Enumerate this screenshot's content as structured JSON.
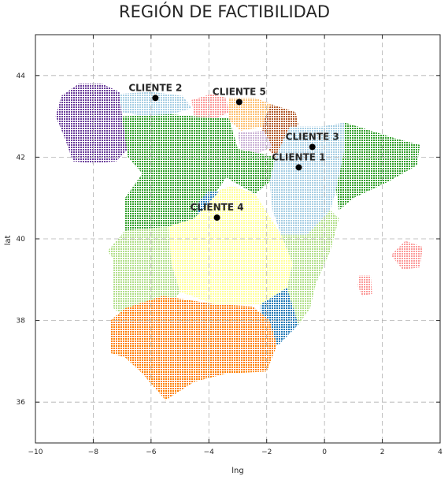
{
  "chart_data": {
    "type": "scatter",
    "title": "REGIÓN DE FACTIBILIDAD",
    "xlabel": "lng",
    "ylabel": "lat",
    "xlim": [
      -10,
      4
    ],
    "ylim": [
      35,
      45
    ],
    "x_ticks": [
      -10,
      -8,
      -6,
      -4,
      -2,
      0,
      2,
      4
    ],
    "y_ticks": [
      36,
      38,
      40,
      42,
      44
    ],
    "grid": true,
    "grid_style": "dashed",
    "colors": {
      "purple": "#6a3d9a",
      "light_blue": "#a6cee3",
      "pink": "#fb9a99",
      "peach": "#fdbf6f",
      "brown": "#b15928",
      "lavender": "#cab2d6",
      "green": "#33a02c",
      "dark_blue": "#1f78b4",
      "yellow": "#ffff99",
      "light_green": "#b2df8a",
      "orange": "#ff7f00",
      "point": "#000000"
    },
    "clients": [
      {
        "label": "CLIENTE 2",
        "lng": -5.85,
        "lat": 43.45
      },
      {
        "label": "CLIENTE 5",
        "lng": -2.95,
        "lat": 43.35
      },
      {
        "label": "CLIENTE 3",
        "lng": -0.42,
        "lat": 42.25
      },
      {
        "label": "CLIENTE 1",
        "lng": -0.89,
        "lat": 41.75
      },
      {
        "label": "CLIENTE 4",
        "lng": -3.72,
        "lat": 40.52
      }
    ],
    "regions": [
      {
        "color": "purple",
        "polygon": [
          [
            -9.3,
            43.0
          ],
          [
            -9.1,
            43.5
          ],
          [
            -8.5,
            43.8
          ],
          [
            -7.7,
            43.8
          ],
          [
            -7.1,
            43.6
          ],
          [
            -7.0,
            43.0
          ],
          [
            -6.8,
            42.2
          ],
          [
            -7.2,
            41.9
          ],
          [
            -8.0,
            41.85
          ],
          [
            -8.7,
            41.9
          ],
          [
            -9.0,
            42.5
          ]
        ]
      },
      {
        "color": "light_blue",
        "polygon": [
          [
            -7.1,
            43.55
          ],
          [
            -6.0,
            43.6
          ],
          [
            -4.9,
            43.5
          ],
          [
            -4.6,
            43.2
          ],
          [
            -5.3,
            43.05
          ],
          [
            -6.2,
            43.0
          ],
          [
            -7.0,
            43.1
          ]
        ]
      },
      {
        "color": "pink",
        "polygon": [
          [
            -4.6,
            43.4
          ],
          [
            -3.9,
            43.55
          ],
          [
            -3.4,
            43.45
          ],
          [
            -3.3,
            43.1
          ],
          [
            -3.9,
            42.9
          ],
          [
            -4.5,
            43.0
          ]
        ]
      },
      {
        "color": "peach",
        "polygon": [
          [
            -3.3,
            43.45
          ],
          [
            -2.4,
            43.45
          ],
          [
            -1.85,
            43.3
          ],
          [
            -2.1,
            42.75
          ],
          [
            -2.9,
            42.65
          ],
          [
            -3.3,
            42.9
          ]
        ]
      },
      {
        "color": "brown",
        "polygon": [
          [
            -1.85,
            43.3
          ],
          [
            -1.0,
            43.1
          ],
          [
            -0.9,
            42.8
          ],
          [
            -1.3,
            42.3
          ],
          [
            -1.7,
            42.0
          ],
          [
            -2.2,
            42.4
          ],
          [
            -2.1,
            42.9
          ]
        ]
      },
      {
        "color": "lavender",
        "polygon": [
          [
            -3.0,
            42.6
          ],
          [
            -2.1,
            42.65
          ],
          [
            -1.8,
            42.25
          ],
          [
            -2.3,
            42.1
          ],
          [
            -2.9,
            42.2
          ]
        ]
      },
      {
        "color": "light_blue",
        "polygon": [
          [
            -1.7,
            42.0
          ],
          [
            -1.2,
            42.75
          ],
          [
            -0.1,
            42.75
          ],
          [
            0.7,
            42.85
          ],
          [
            0.7,
            42.2
          ],
          [
            0.4,
            41.2
          ],
          [
            0.2,
            40.7
          ],
          [
            -0.6,
            40.1
          ],
          [
            -1.5,
            40.1
          ],
          [
            -1.8,
            40.7
          ],
          [
            -1.9,
            41.4
          ]
        ]
      },
      {
        "color": "green",
        "polygon": [
          [
            -7.0,
            43.0
          ],
          [
            -5.3,
            43.05
          ],
          [
            -4.5,
            43.0
          ],
          [
            -3.3,
            42.95
          ],
          [
            -3.0,
            42.2
          ],
          [
            -2.3,
            42.1
          ],
          [
            -1.7,
            42.0
          ],
          [
            -1.9,
            41.4
          ],
          [
            -2.4,
            41.1
          ],
          [
            -3.4,
            41.5
          ],
          [
            -3.9,
            41.0
          ],
          [
            -4.5,
            40.5
          ],
          [
            -5.4,
            40.3
          ],
          [
            -6.9,
            40.2
          ],
          [
            -6.9,
            41.0
          ],
          [
            -6.3,
            41.6
          ],
          [
            -6.8,
            42.0
          ]
        ]
      },
      {
        "color": "green",
        "polygon": [
          [
            0.7,
            42.85
          ],
          [
            1.6,
            42.65
          ],
          [
            2.5,
            42.45
          ],
          [
            3.3,
            42.3
          ],
          [
            3.2,
            41.8
          ],
          [
            2.2,
            41.4
          ],
          [
            1.0,
            41.0
          ],
          [
            0.5,
            40.7
          ],
          [
            0.4,
            41.2
          ],
          [
            0.7,
            42.2
          ]
        ]
      },
      {
        "color": "dark_blue",
        "polygon": [
          [
            -4.4,
            40.85
          ],
          [
            -4.05,
            41.15
          ],
          [
            -3.55,
            41.15
          ],
          [
            -3.15,
            40.85
          ],
          [
            -3.3,
            40.25
          ],
          [
            -3.85,
            40.05
          ],
          [
            -4.4,
            40.3
          ]
        ]
      },
      {
        "color": "yellow",
        "polygon": [
          [
            -5.4,
            40.3
          ],
          [
            -4.5,
            40.5
          ],
          [
            -4.1,
            40.8
          ],
          [
            -3.6,
            41.2
          ],
          [
            -3.2,
            41.3
          ],
          [
            -2.4,
            41.1
          ],
          [
            -1.5,
            40.1
          ],
          [
            -1.1,
            39.4
          ],
          [
            -1.3,
            38.8
          ],
          [
            -2.2,
            38.4
          ],
          [
            -3.8,
            38.4
          ],
          [
            -5.0,
            38.7
          ],
          [
            -5.3,
            39.4
          ]
        ]
      },
      {
        "color": "light_green",
        "polygon": [
          [
            -6.9,
            40.2
          ],
          [
            -5.4,
            40.3
          ],
          [
            -5.3,
            39.4
          ],
          [
            -5.0,
            38.7
          ],
          [
            -5.6,
            38.1
          ],
          [
            -6.5,
            37.9
          ],
          [
            -7.3,
            38.3
          ],
          [
            -7.3,
            39.5
          ],
          [
            -7.5,
            39.7
          ]
        ]
      },
      {
        "color": "light_green",
        "polygon": [
          [
            -0.6,
            40.1
          ],
          [
            0.2,
            40.7
          ],
          [
            0.5,
            40.5
          ],
          [
            0.2,
            39.7
          ],
          [
            -0.3,
            38.9
          ],
          [
            -0.5,
            38.3
          ],
          [
            -0.9,
            37.9
          ],
          [
            -1.3,
            38.8
          ],
          [
            -1.1,
            39.4
          ],
          [
            -1.5,
            40.1
          ]
        ]
      },
      {
        "color": "dark_blue",
        "polygon": [
          [
            -2.2,
            38.4
          ],
          [
            -1.3,
            38.8
          ],
          [
            -0.9,
            37.9
          ],
          [
            -1.6,
            37.4
          ],
          [
            -2.2,
            37.7
          ]
        ]
      },
      {
        "color": "orange",
        "polygon": [
          [
            -7.4,
            37.2
          ],
          [
            -7.4,
            38.0
          ],
          [
            -6.9,
            38.3
          ],
          [
            -5.6,
            38.6
          ],
          [
            -3.8,
            38.4
          ],
          [
            -2.5,
            38.35
          ],
          [
            -1.9,
            38.0
          ],
          [
            -1.65,
            37.4
          ],
          [
            -2.0,
            36.75
          ],
          [
            -3.4,
            36.7
          ],
          [
            -4.5,
            36.5
          ],
          [
            -5.5,
            36.05
          ],
          [
            -6.3,
            36.7
          ],
          [
            -6.9,
            37.1
          ]
        ]
      },
      {
        "color": "pink",
        "polygon": [
          [
            2.3,
            39.6
          ],
          [
            2.8,
            39.95
          ],
          [
            3.4,
            39.8
          ],
          [
            3.3,
            39.3
          ],
          [
            2.7,
            39.25
          ]
        ]
      },
      {
        "color": "pink",
        "polygon": [
          [
            1.2,
            39.1
          ],
          [
            1.6,
            39.1
          ],
          [
            1.65,
            38.65
          ],
          [
            1.3,
            38.6
          ],
          [
            1.15,
            38.85
          ]
        ]
      }
    ]
  }
}
